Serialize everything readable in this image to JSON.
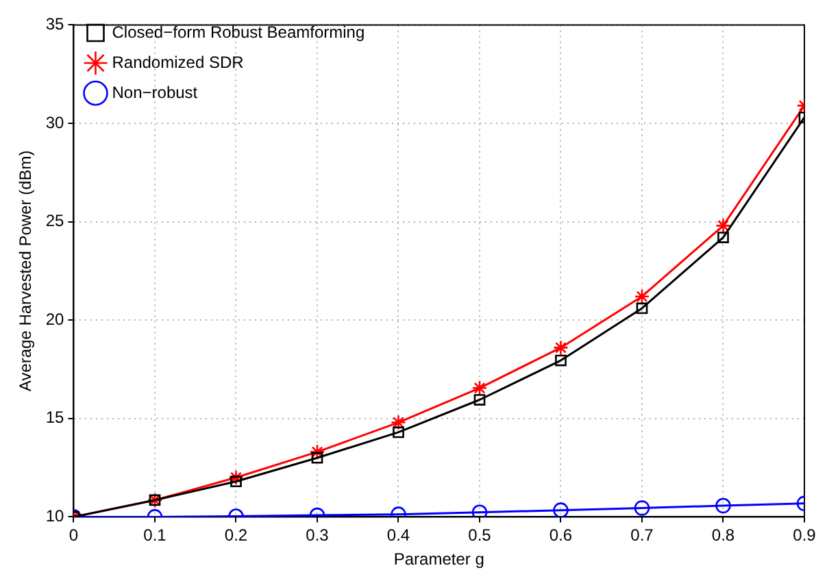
{
  "chart_data": {
    "type": "line",
    "xlabel": "Parameter g",
    "ylabel": "Average Harvested Power (dBm)",
    "x": [
      0,
      0.1,
      0.2,
      0.3,
      0.4,
      0.5,
      0.6,
      0.7,
      0.8,
      0.9
    ],
    "series": [
      {
        "name": "Closed−form Robust Beamforming",
        "color": "#000000",
        "marker": "square",
        "values": [
          10,
          10.85,
          11.8,
          13.0,
          14.3,
          15.95,
          17.95,
          20.6,
          24.2,
          30.3
        ]
      },
      {
        "name": "Randomized SDR",
        "color": "#ff0000",
        "marker": "cross",
        "values": [
          10,
          10.85,
          12.0,
          13.3,
          14.8,
          16.55,
          18.6,
          21.2,
          24.8,
          30.9
        ]
      },
      {
        "name": "Non−robust",
        "color": "#0000ff",
        "marker": "circle",
        "values": [
          10,
          10,
          10.03,
          10.08,
          10.13,
          10.23,
          10.34,
          10.45,
          10.57,
          10.68
        ]
      }
    ],
    "xlim": [
      0,
      0.9
    ],
    "xticks": [
      0,
      0.1,
      0.2,
      0.3,
      0.4,
      0.5,
      0.6,
      0.7,
      0.8,
      0.9
    ],
    "ylim": [
      10,
      35
    ],
    "yticks": [
      10,
      15,
      20,
      25,
      30,
      35
    ],
    "grid": true,
    "legend": "top left",
    "line_style": "solid"
  }
}
